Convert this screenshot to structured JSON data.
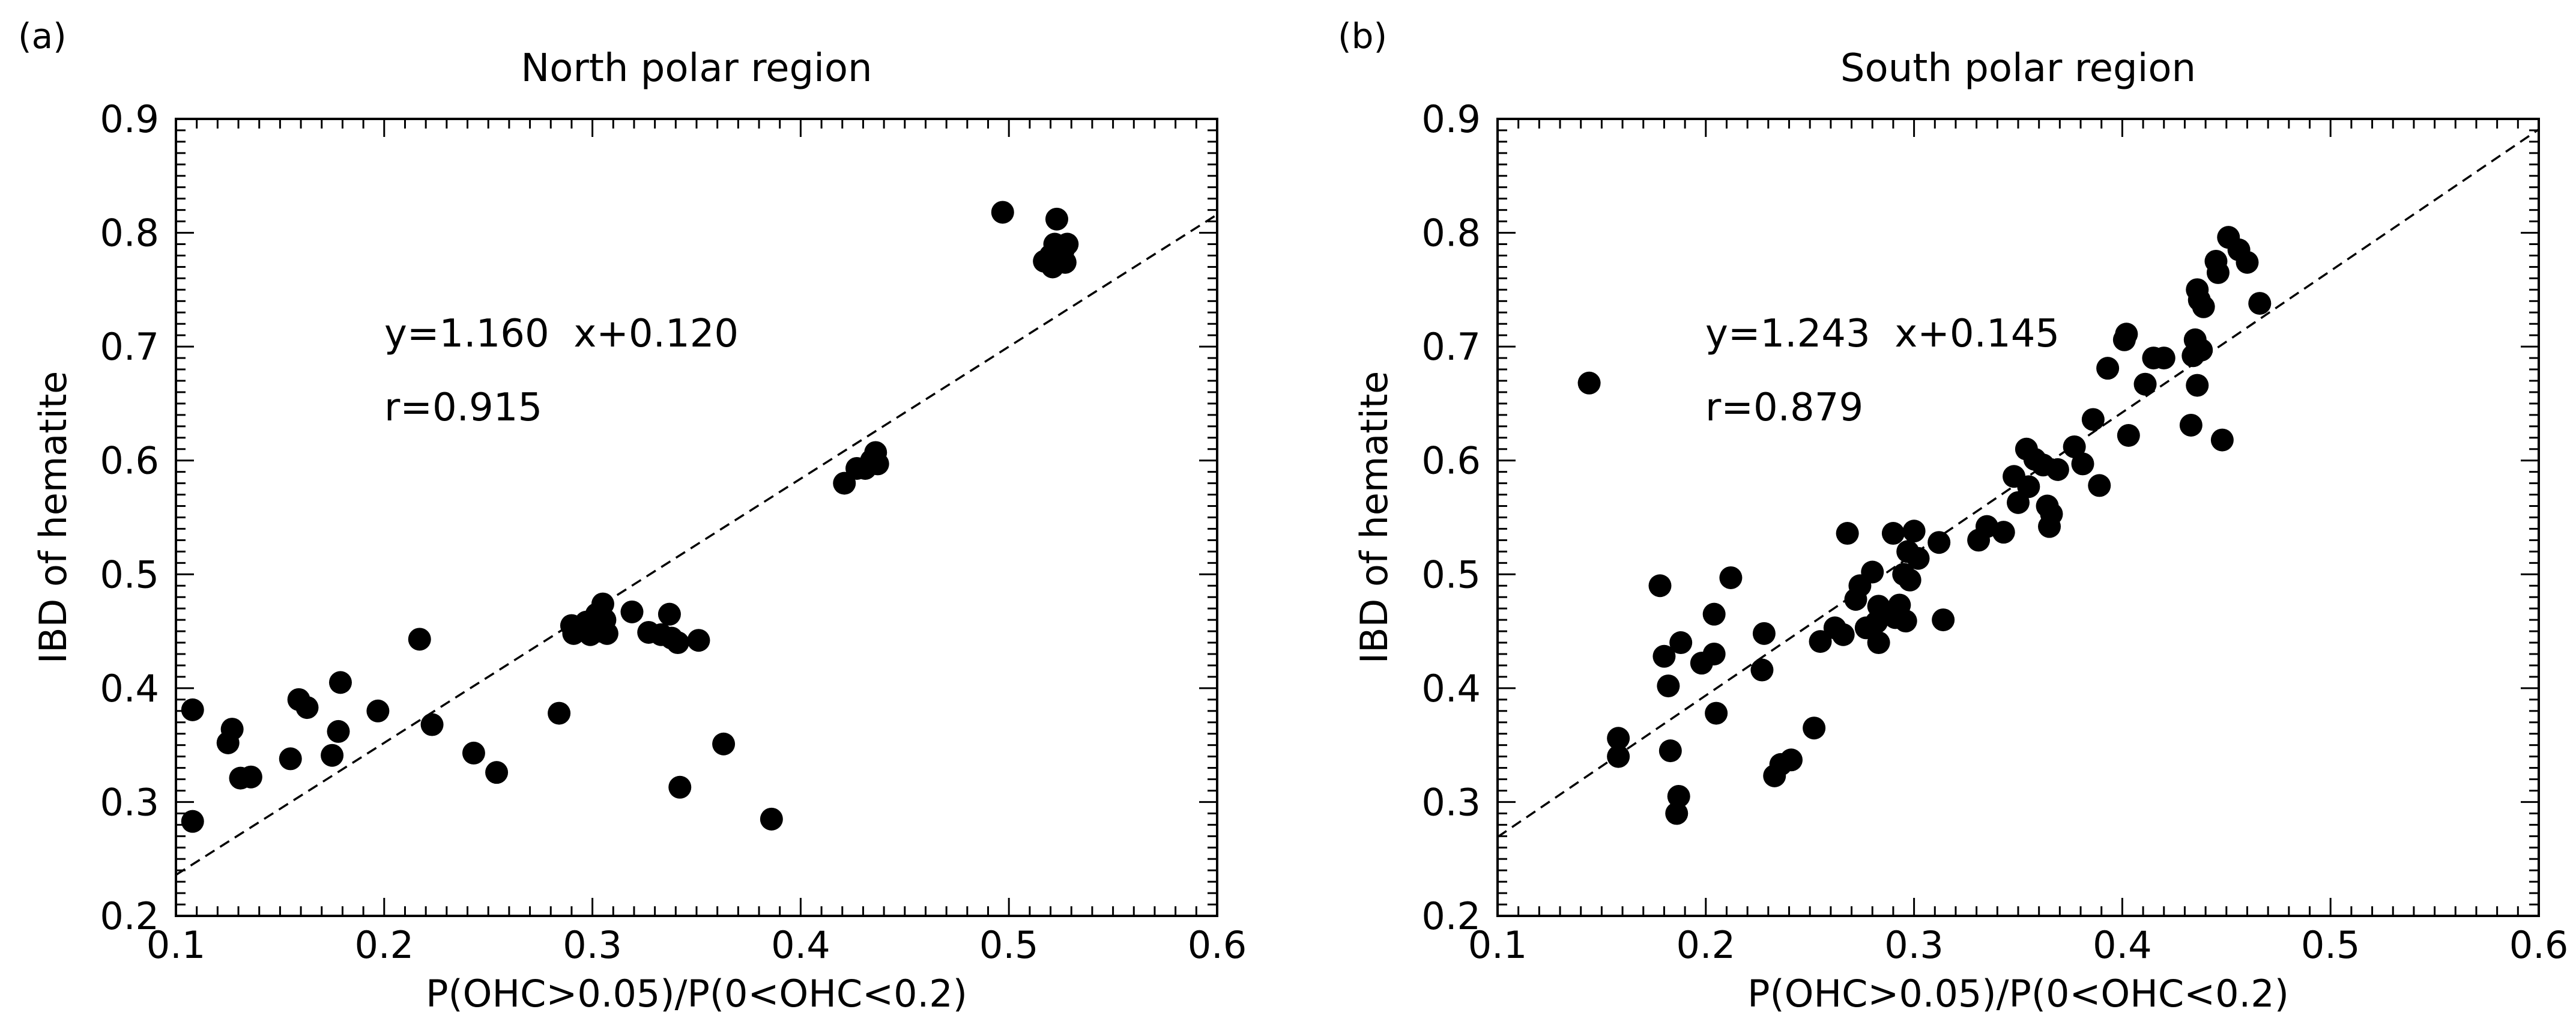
{
  "chart_data": [
    {
      "type": "scatter",
      "panel_label": "(a)",
      "title": "North polar region",
      "xlabel": "P(OHC>0.05)/P(0<OHC<0.2)",
      "ylabel": "IBD of hematite",
      "xlim": [
        0.1,
        0.6
      ],
      "ylim": [
        0.2,
        0.9
      ],
      "xticks": [
        "0.1",
        "0.2",
        "0.3",
        "0.4",
        "0.5",
        "0.6"
      ],
      "yticks": [
        "0.2",
        "0.3",
        "0.4",
        "0.5",
        "0.6",
        "0.7",
        "0.8",
        "0.9"
      ],
      "fit_text": "y=1.160  x+0.120",
      "r_text": "r=0.915",
      "fit": {
        "slope": 1.16,
        "intercept": 0.12
      },
      "grid": false,
      "points": [
        [
          0.108,
          0.381
        ],
        [
          0.108,
          0.283
        ],
        [
          0.125,
          0.352
        ],
        [
          0.127,
          0.364
        ],
        [
          0.131,
          0.321
        ],
        [
          0.136,
          0.322
        ],
        [
          0.155,
          0.338
        ],
        [
          0.159,
          0.39
        ],
        [
          0.163,
          0.383
        ],
        [
          0.175,
          0.341
        ],
        [
          0.178,
          0.362
        ],
        [
          0.179,
          0.405
        ],
        [
          0.197,
          0.38
        ],
        [
          0.217,
          0.443
        ],
        [
          0.223,
          0.368
        ],
        [
          0.243,
          0.343
        ],
        [
          0.254,
          0.326
        ],
        [
          0.284,
          0.378
        ],
        [
          0.29,
          0.455
        ],
        [
          0.291,
          0.448
        ],
        [
          0.297,
          0.458
        ],
        [
          0.299,
          0.447
        ],
        [
          0.302,
          0.465
        ],
        [
          0.304,
          0.45
        ],
        [
          0.305,
          0.474
        ],
        [
          0.306,
          0.46
        ],
        [
          0.307,
          0.448
        ],
        [
          0.319,
          0.467
        ],
        [
          0.327,
          0.449
        ],
        [
          0.333,
          0.447
        ],
        [
          0.337,
          0.465
        ],
        [
          0.338,
          0.444
        ],
        [
          0.341,
          0.44
        ],
        [
          0.342,
          0.313
        ],
        [
          0.351,
          0.442
        ],
        [
          0.363,
          0.351
        ],
        [
          0.386,
          0.285
        ],
        [
          0.421,
          0.58
        ],
        [
          0.427,
          0.593
        ],
        [
          0.431,
          0.593
        ],
        [
          0.434,
          0.6
        ],
        [
          0.436,
          0.607
        ],
        [
          0.437,
          0.597
        ],
        [
          0.497,
          0.818
        ],
        [
          0.517,
          0.775
        ],
        [
          0.52,
          0.78
        ],
        [
          0.521,
          0.77
        ],
        [
          0.522,
          0.79
        ],
        [
          0.523,
          0.812
        ],
        [
          0.524,
          0.778
        ],
        [
          0.526,
          0.784
        ],
        [
          0.527,
          0.774
        ],
        [
          0.528,
          0.79
        ]
      ]
    },
    {
      "type": "scatter",
      "panel_label": "(b)",
      "title": "South polar region",
      "xlabel": "P(OHC>0.05)/P(0<OHC<0.2)",
      "ylabel": "IBD of hematite",
      "xlim": [
        0.1,
        0.6
      ],
      "ylim": [
        0.2,
        0.9
      ],
      "xticks": [
        "0.1",
        "0.2",
        "0.3",
        "0.4",
        "0.5",
        "0.6"
      ],
      "yticks": [
        "0.2",
        "0.3",
        "0.4",
        "0.5",
        "0.6",
        "0.7",
        "0.8",
        "0.9"
      ],
      "fit_text": "y=1.243  x+0.145",
      "r_text": "r=0.879",
      "fit": {
        "slope": 1.243,
        "intercept": 0.145
      },
      "grid": false,
      "points": [
        [
          0.144,
          0.668
        ],
        [
          0.158,
          0.356
        ],
        [
          0.158,
          0.34
        ],
        [
          0.178,
          0.49
        ],
        [
          0.18,
          0.428
        ],
        [
          0.182,
          0.402
        ],
        [
          0.183,
          0.345
        ],
        [
          0.186,
          0.29
        ],
        [
          0.187,
          0.305
        ],
        [
          0.188,
          0.44
        ],
        [
          0.198,
          0.422
        ],
        [
          0.204,
          0.43
        ],
        [
          0.204,
          0.465
        ],
        [
          0.205,
          0.378
        ],
        [
          0.212,
          0.497
        ],
        [
          0.227,
          0.416
        ],
        [
          0.228,
          0.448
        ],
        [
          0.233,
          0.323
        ],
        [
          0.236,
          0.333
        ],
        [
          0.241,
          0.337
        ],
        [
          0.252,
          0.365
        ],
        [
          0.255,
          0.441
        ],
        [
          0.262,
          0.453
        ],
        [
          0.266,
          0.447
        ],
        [
          0.268,
          0.536
        ],
        [
          0.272,
          0.478
        ],
        [
          0.274,
          0.49
        ],
        [
          0.277,
          0.453
        ],
        [
          0.28,
          0.502
        ],
        [
          0.282,
          0.458
        ],
        [
          0.283,
          0.44
        ],
        [
          0.283,
          0.472
        ],
        [
          0.287,
          0.466
        ],
        [
          0.29,
          0.536
        ],
        [
          0.291,
          0.462
        ],
        [
          0.293,
          0.473
        ],
        [
          0.295,
          0.5
        ],
        [
          0.296,
          0.459
        ],
        [
          0.297,
          0.52
        ],
        [
          0.298,
          0.495
        ],
        [
          0.3,
          0.538
        ],
        [
          0.302,
          0.514
        ],
        [
          0.312,
          0.528
        ],
        [
          0.314,
          0.46
        ],
        [
          0.331,
          0.53
        ],
        [
          0.335,
          0.542
        ],
        [
          0.343,
          0.537
        ],
        [
          0.348,
          0.586
        ],
        [
          0.35,
          0.563
        ],
        [
          0.354,
          0.61
        ],
        [
          0.355,
          0.577
        ],
        [
          0.358,
          0.601
        ],
        [
          0.362,
          0.596
        ],
        [
          0.364,
          0.56
        ],
        [
          0.365,
          0.542
        ],
        [
          0.366,
          0.553
        ],
        [
          0.369,
          0.592
        ],
        [
          0.377,
          0.612
        ],
        [
          0.381,
          0.597
        ],
        [
          0.386,
          0.636
        ],
        [
          0.389,
          0.578
        ],
        [
          0.393,
          0.681
        ],
        [
          0.401,
          0.706
        ],
        [
          0.402,
          0.711
        ],
        [
          0.403,
          0.622
        ],
        [
          0.411,
          0.667
        ],
        [
          0.415,
          0.69
        ],
        [
          0.42,
          0.69
        ],
        [
          0.433,
          0.631
        ],
        [
          0.434,
          0.692
        ],
        [
          0.435,
          0.706
        ],
        [
          0.436,
          0.666
        ],
        [
          0.436,
          0.75
        ],
        [
          0.437,
          0.741
        ],
        [
          0.438,
          0.697
        ],
        [
          0.439,
          0.735
        ],
        [
          0.445,
          0.775
        ],
        [
          0.446,
          0.765
        ],
        [
          0.448,
          0.618
        ],
        [
          0.451,
          0.796
        ],
        [
          0.456,
          0.785
        ],
        [
          0.46,
          0.774
        ],
        [
          0.466,
          0.738
        ]
      ]
    }
  ]
}
